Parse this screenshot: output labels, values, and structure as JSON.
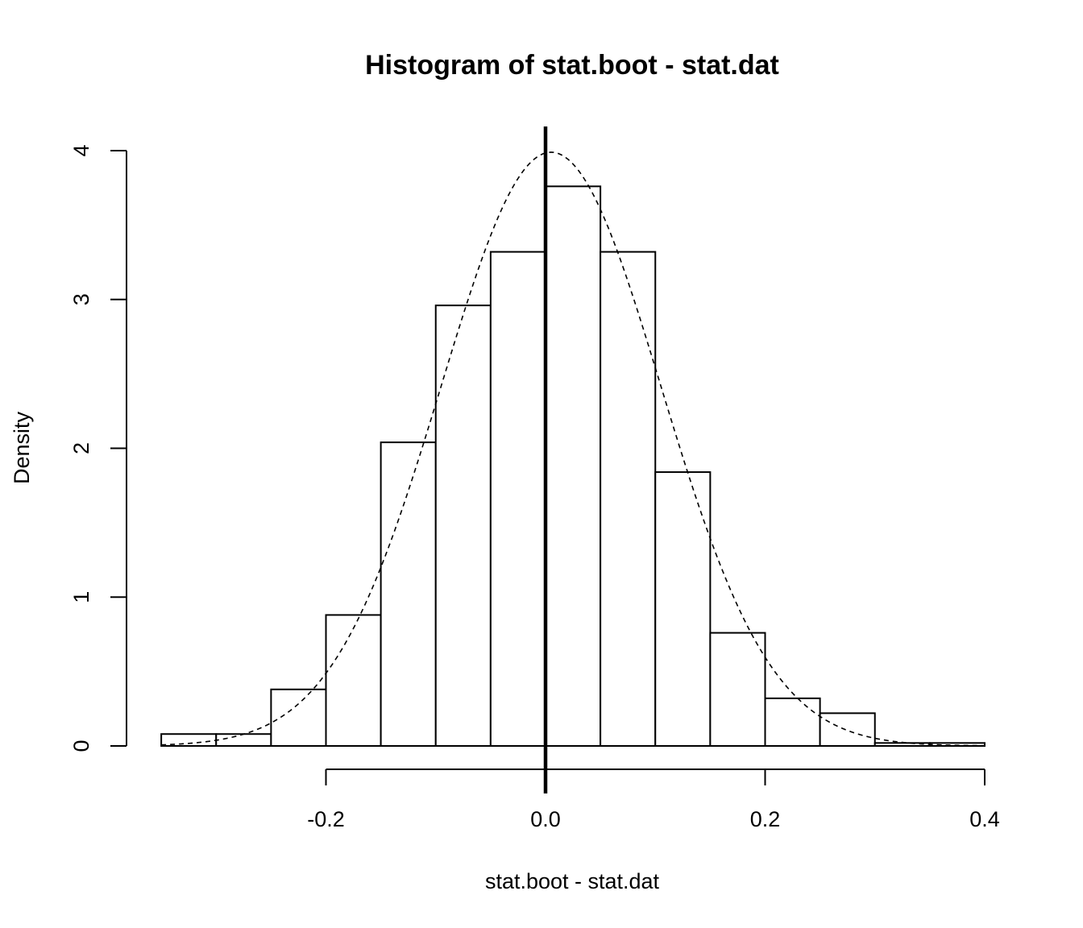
{
  "chart_data": {
    "type": "bar",
    "title": "Histogram of stat.boot - stat.dat",
    "xlabel": "stat.boot - stat.dat",
    "ylabel": "Density",
    "x_ticks": [
      -0.2,
      0.0,
      0.2,
      0.4
    ],
    "x_tick_labels": [
      "-0.2",
      "0.0",
      "0.2",
      "0.4"
    ],
    "y_ticks": [
      0,
      1,
      2,
      3,
      4
    ],
    "y_tick_labels": [
      "0",
      "1",
      "2",
      "3",
      "4"
    ],
    "bins": [
      {
        "from": -0.35,
        "to": -0.3,
        "density": 0.08
      },
      {
        "from": -0.3,
        "to": -0.25,
        "density": 0.08
      },
      {
        "from": -0.25,
        "to": -0.2,
        "density": 0.38
      },
      {
        "from": -0.2,
        "to": -0.15,
        "density": 0.88
      },
      {
        "from": -0.15,
        "to": -0.1,
        "density": 2.04
      },
      {
        "from": -0.1,
        "to": -0.05,
        "density": 2.96
      },
      {
        "from": -0.05,
        "to": 0.0,
        "density": 3.32
      },
      {
        "from": 0.0,
        "to": 0.05,
        "density": 3.76
      },
      {
        "from": 0.05,
        "to": 0.1,
        "density": 3.32
      },
      {
        "from": 0.1,
        "to": 0.15,
        "density": 1.84
      },
      {
        "from": 0.15,
        "to": 0.2,
        "density": 0.76
      },
      {
        "from": 0.2,
        "to": 0.25,
        "density": 0.32
      },
      {
        "from": 0.25,
        "to": 0.3,
        "density": 0.22
      },
      {
        "from": 0.3,
        "to": 0.35,
        "density": 0.02
      },
      {
        "from": 0.35,
        "to": 0.4,
        "density": 0.02
      }
    ],
    "density_curve": {
      "style": "dashed",
      "mean": 0.005,
      "sd": 0.1
    },
    "vertical_line": {
      "x": 0.0,
      "style": "solid-thick"
    },
    "xlim": [
      -0.35,
      0.4
    ],
    "ylim": [
      0,
      4.15
    ],
    "grid": false,
    "legend": "none"
  }
}
